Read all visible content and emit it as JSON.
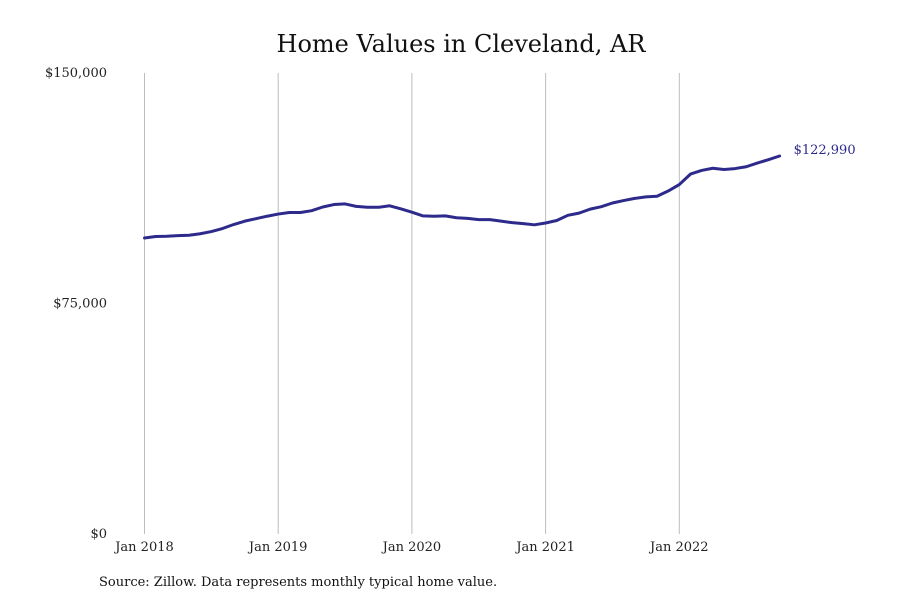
{
  "chart_data": {
    "type": "line",
    "title": "Home Values in Cleveland, AR",
    "xlabel": "",
    "ylabel": "",
    "x_range": [
      "2018-01",
      "2023-01"
    ],
    "ylim": [
      0,
      150000
    ],
    "y_ticks": [
      {
        "value": 0,
        "label": "$0"
      },
      {
        "value": 75000,
        "label": "$75,000"
      },
      {
        "value": 150000,
        "label": "$150,000"
      }
    ],
    "x_ticks": [
      {
        "value": "2018-01",
        "label": "Jan 2018"
      },
      {
        "value": "2019-01",
        "label": "Jan 2019"
      },
      {
        "value": "2020-01",
        "label": "Jan 2020"
      },
      {
        "value": "2021-01",
        "label": "Jan 2021"
      },
      {
        "value": "2022-01",
        "label": "Jan 2022"
      }
    ],
    "grid": "vertical-at-x-ticks",
    "legend": "none",
    "color": "#2d2a8c",
    "end_label": "$122,990",
    "series": [
      {
        "x": [
          "2018-01",
          "2018-02",
          "2018-03",
          "2018-04",
          "2018-05",
          "2018-06",
          "2018-07",
          "2018-08",
          "2018-09",
          "2018-10",
          "2018-11",
          "2018-12",
          "2019-01",
          "2019-02",
          "2019-03",
          "2019-04",
          "2019-05",
          "2019-06",
          "2019-07",
          "2019-08",
          "2019-09",
          "2019-10",
          "2019-11",
          "2019-12",
          "2020-01",
          "2020-02",
          "2020-03",
          "2020-04",
          "2020-05",
          "2020-06",
          "2020-07",
          "2020-08",
          "2020-09",
          "2020-10",
          "2020-11",
          "2020-12",
          "2021-01",
          "2021-02",
          "2021-03",
          "2021-04",
          "2021-05",
          "2021-06",
          "2021-07",
          "2021-08",
          "2021-09",
          "2021-10",
          "2021-11",
          "2021-12",
          "2022-01",
          "2022-02",
          "2022-03",
          "2022-04",
          "2022-05",
          "2022-06",
          "2022-07",
          "2022-08",
          "2022-09",
          "2022-10"
        ],
        "values": [
          96300,
          96800,
          96900,
          97100,
          97200,
          97700,
          98400,
          99400,
          100700,
          101800,
          102600,
          103400,
          104100,
          104600,
          104600,
          105200,
          106400,
          107200,
          107400,
          106600,
          106300,
          106300,
          106800,
          105800,
          104700,
          103500,
          103400,
          103500,
          102900,
          102700,
          102300,
          102300,
          101800,
          101300,
          101000,
          100600,
          101200,
          102000,
          103700,
          104400,
          105700,
          106500,
          107700,
          108500,
          109200,
          109700,
          109900,
          111600,
          113700,
          117100,
          118300,
          119000,
          118600,
          118900,
          119500,
          120700,
          121800,
          122990
        ]
      }
    ],
    "source_note": "Source: Zillow. Data represents monthly typical home value."
  }
}
